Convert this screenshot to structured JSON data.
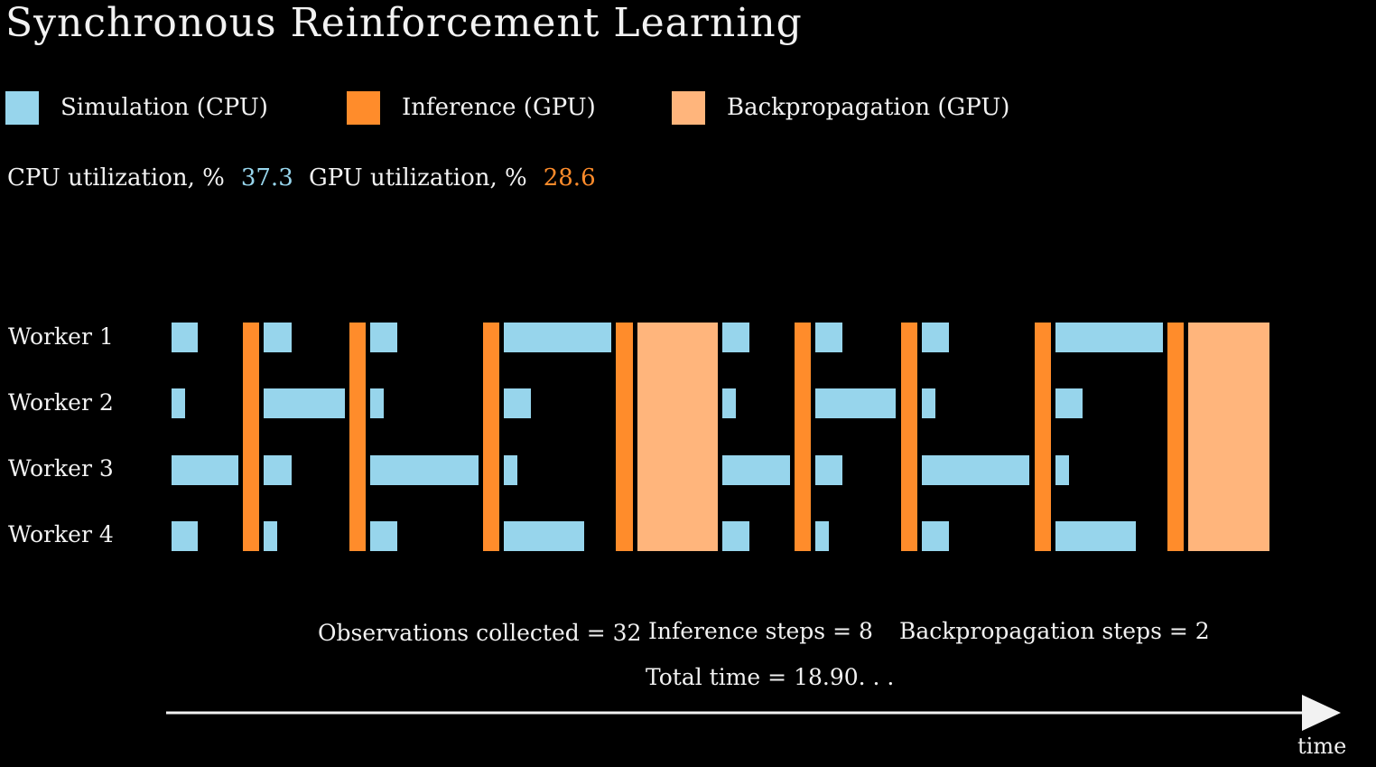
{
  "title": "Synchronous Reinforcement Learning",
  "colors": {
    "simulation": "#97d5ec",
    "inference": "#ff8c2b",
    "backprop": "#ffb57c",
    "text": "#f2f2f2"
  },
  "legend": [
    {
      "label": "Simulation (CPU)",
      "color": "#97d5ec"
    },
    {
      "label": "Inference (GPU)",
      "color": "#ff8c2b"
    },
    {
      "label": "Backpropagation (GPU)",
      "color": "#ffb57c"
    }
  ],
  "utilization": {
    "cpu_label": "CPU utilization, %",
    "cpu_value": "37.3",
    "gpu_label": "GPU utilization, %",
    "gpu_value": "28.6"
  },
  "workers": [
    "Worker 1",
    "Worker 2",
    "Worker 3",
    "Worker 4"
  ],
  "stats": {
    "observations": "Observations collected = 32",
    "inference": "Inference steps = 8",
    "backprop": "Backpropagation steps = 2",
    "total_time": "Total time = 18.90. . ."
  },
  "axis_label": "time"
}
